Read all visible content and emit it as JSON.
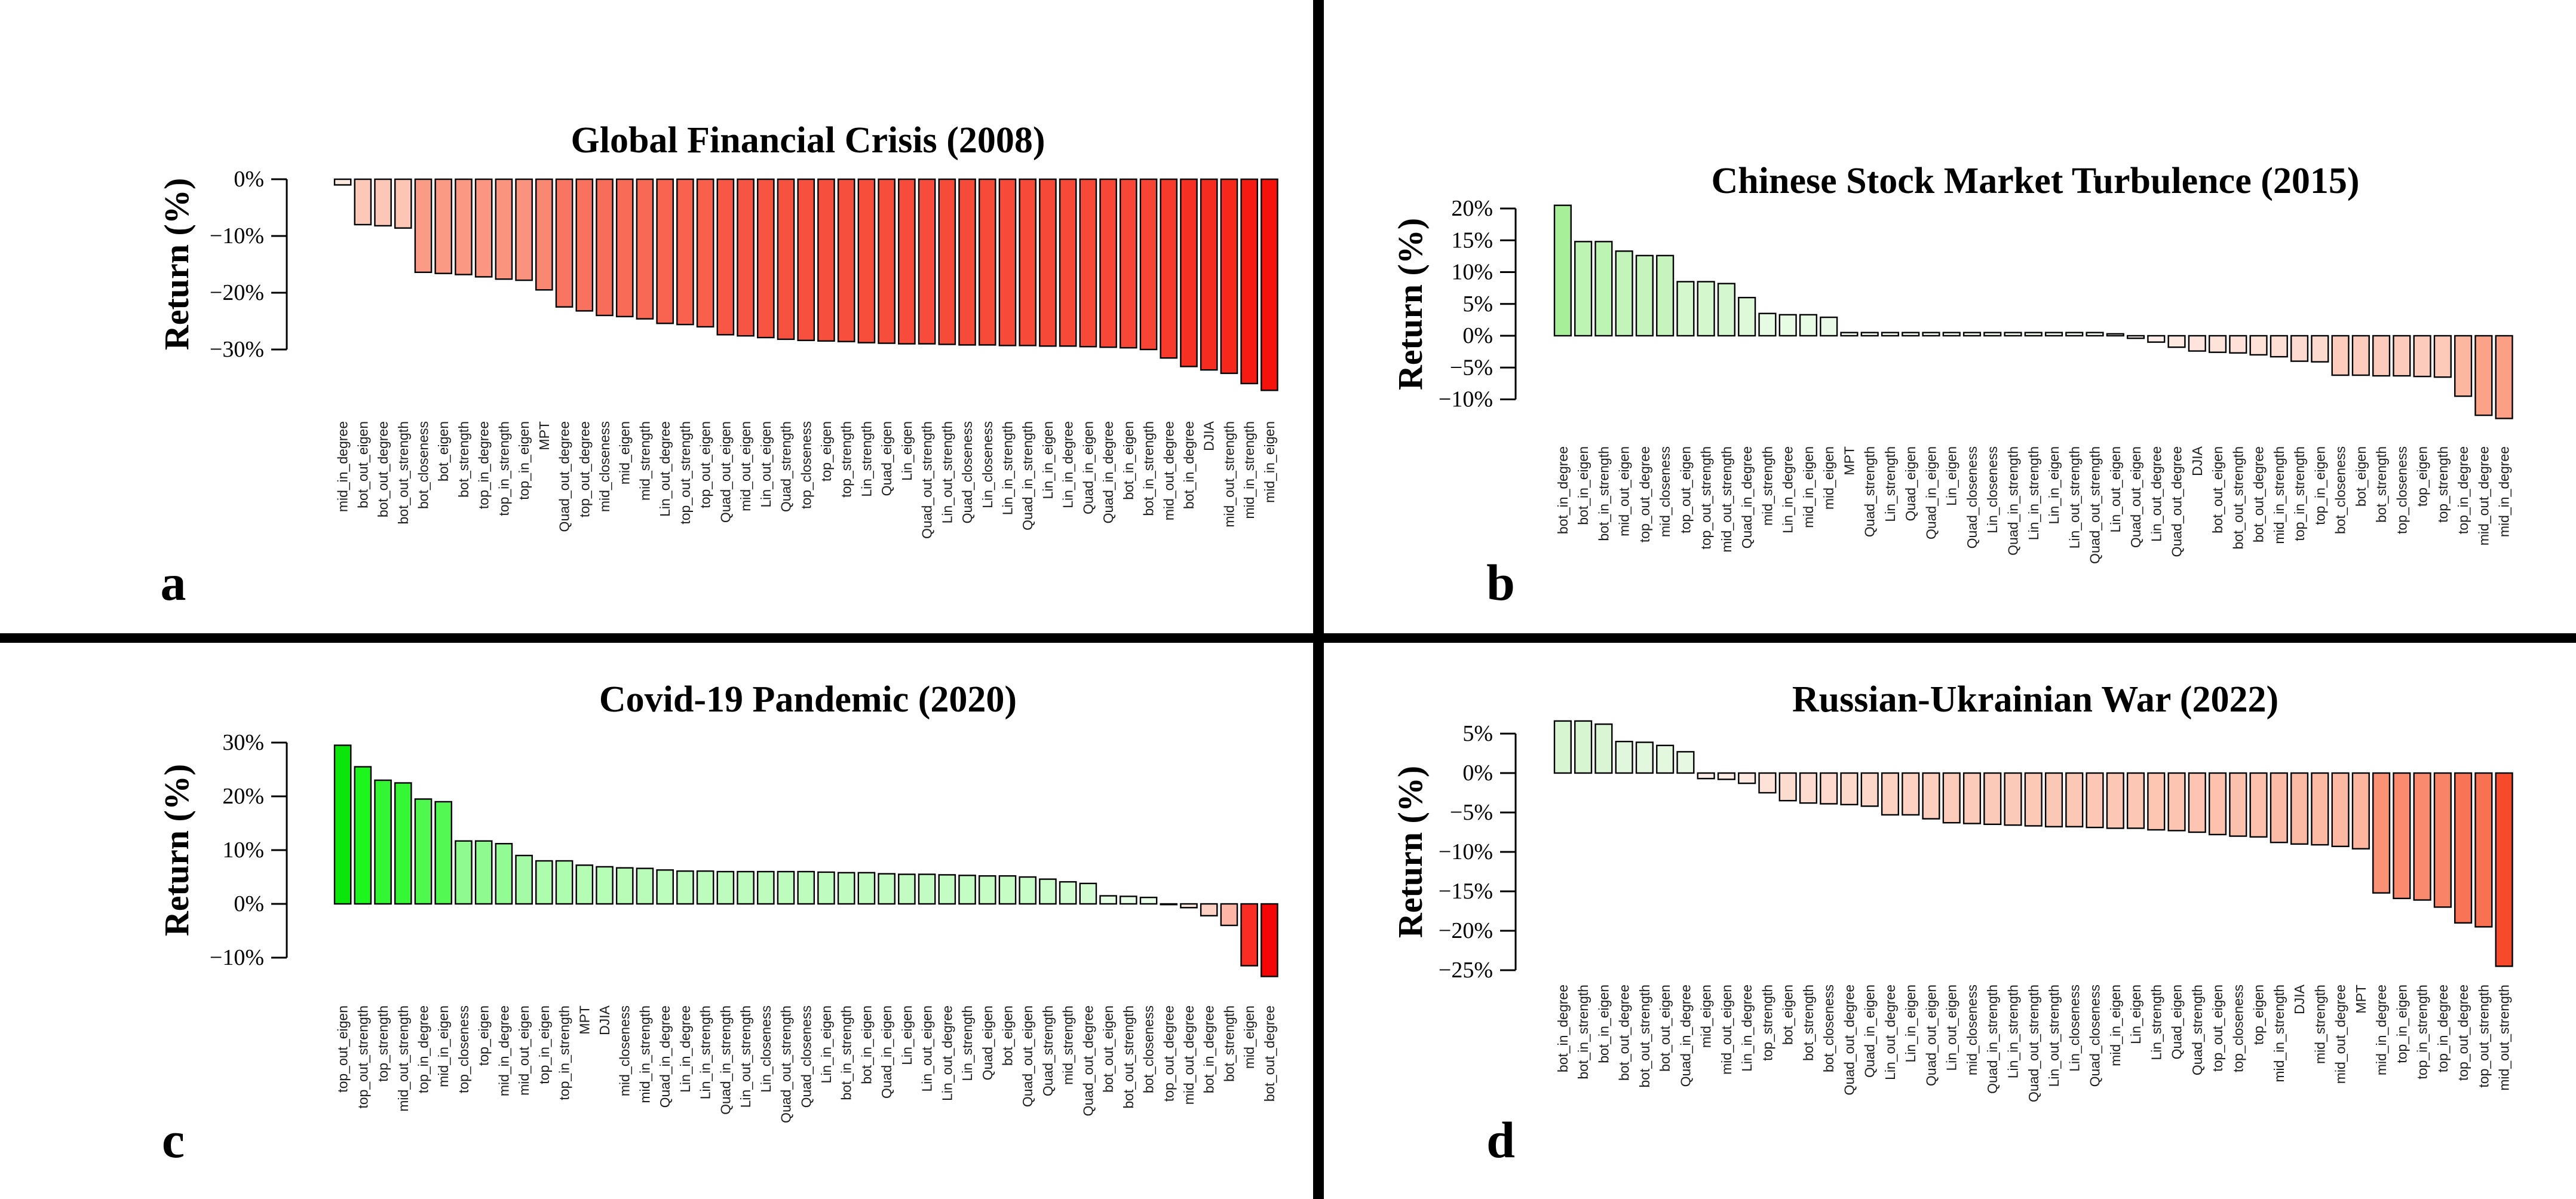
{
  "figure": {
    "ylabel": "Return (%)"
  },
  "chart_data": [
    {
      "id": "a",
      "corner_label": "a",
      "type": "bar",
      "title": "Global Financial Crisis (2008)",
      "ylabel": "Return (%)",
      "ytick_labels": [
        "0%",
        "−10%",
        "−20%",
        "−30%"
      ],
      "ytick_values": [
        0,
        -10,
        -20,
        -30
      ],
      "ylim": [
        2,
        -38
      ],
      "grid": false,
      "legend": null,
      "categories": [
        "mid_in_degree",
        "bot_out_eigen",
        "bot_out_degree",
        "bot_out_strength",
        "bot_closeness",
        "bot_eigen",
        "bot_strength",
        "top_in_degree",
        "top_in_strength",
        "top_in_eigen",
        "MPT",
        "Quad_out_degree",
        "top_out_degree",
        "mid_closeness",
        "mid_eigen",
        "mid_strength",
        "Lin_out_degree",
        "top_out_strength",
        "top_out_eigen",
        "Quad_out_eigen",
        "mid_out_eigen",
        "Lin_out_eigen",
        "Quad_strength",
        "top_closeness",
        "top_eigen",
        "top_strength",
        "Lin_strength",
        "Quad_eigen",
        "Lin_eigen",
        "Quad_out_strength",
        "Lin_out_strength",
        "Quad_closeness",
        "Lin_closeness",
        "Lin_in_strength",
        "Quad_in_strength",
        "Lin_in_eigen",
        "Lin_in_degree",
        "Quad_in_eigen",
        "Quad_in_degree",
        "bot_in_eigen",
        "bot_in_strength",
        "mid_out_degree",
        "bot_in_degree",
        "DJIA",
        "mid_out_strength",
        "mid_in_strength",
        "mid_in_eigen"
      ],
      "values": [
        -1,
        -8,
        -8.2,
        -8.6,
        -16.4,
        -16.6,
        -16.8,
        -17.2,
        -17.6,
        -17.8,
        -19.5,
        -22.5,
        -23.2,
        -24,
        -24.2,
        -24.6,
        -25.4,
        -25.6,
        -26,
        -27.4,
        -27.6,
        -27.9,
        -28.2,
        -28.4,
        -28.5,
        -28.6,
        -28.8,
        -28.9,
        -29,
        -29,
        -29.1,
        -29.2,
        -29.2,
        -29.3,
        -29.3,
        -29.4,
        -29.4,
        -29.5,
        -29.6,
        -29.7,
        -30,
        -31.5,
        -33,
        -33.6,
        -34.2,
        -36,
        -37.2
      ],
      "bar_edge_color": "#000000",
      "color_scale": {
        "pos": {
          "h0": 120,
          "h1": 120,
          "s": 90,
          "l0": 97,
          "l1": 60,
          "ref": 10
        },
        "neg": {
          "h0": 18,
          "h1": 2,
          "s": 92,
          "l0": 95,
          "l1": 50,
          "ref": 37.2
        }
      }
    },
    {
      "id": "b",
      "corner_label": "b",
      "type": "bar",
      "title": "Chinese Stock Market Turbulence (2015)",
      "ylabel": "Return (%)",
      "ytick_labels": [
        "20%",
        "15%",
        "10%",
        "5%",
        "0%",
        "−5%",
        "−10%"
      ],
      "ytick_values": [
        20,
        15,
        10,
        5,
        0,
        -5,
        -10
      ],
      "ylim": [
        22,
        -14
      ],
      "grid": false,
      "legend": null,
      "categories": [
        "bot_in_degree",
        "bot_in_eigen",
        "bot_in_strength",
        "mid_out_eigen",
        "top_out_degree",
        "mid_closeness",
        "top_out_eigen",
        "top_out_strength",
        "mid_out_strength",
        "Quad_in_degree",
        "mid_strength",
        "Lin_in_degree",
        "mid_in_eigen",
        "mid_eigen",
        "MPT",
        "Quad_strength",
        "Lin_strength",
        "Quad_eigen",
        "Quad_in_eigen",
        "Lin_eigen",
        "Quad_closeness",
        "Lin_closeness",
        "Quad_in_strength",
        "Lin_in_strength",
        "Lin_in_eigen",
        "Lin_out_strength",
        "Quad_out_strength",
        "Lin_out_eigen",
        "Quad_out_eigen",
        "Lin_out_degree",
        "Quad_out_degree",
        "DJIA",
        "bot_out_eigen",
        "bot_out_strength",
        "bot_out_degree",
        "mid_in_strength",
        "top_in_strength",
        "top_in_eigen",
        "bot_closeness",
        "bot_eigen",
        "bot_strength",
        "top_closeness",
        "top_eigen",
        "top_strength",
        "top_in_degree",
        "mid_out_degree",
        "mid_in_degree"
      ],
      "values": [
        20.5,
        14.8,
        14.8,
        13.3,
        12.6,
        12.6,
        8.5,
        8.5,
        8.2,
        6,
        3.5,
        3.3,
        3.3,
        2.9,
        0.5,
        0.5,
        0.5,
        0.5,
        0.5,
        0.5,
        0.5,
        0.5,
        0.5,
        0.5,
        0.5,
        0.5,
        0.5,
        0.3,
        -0.4,
        -1,
        -1.8,
        -2.4,
        -2.6,
        -2.7,
        -3,
        -3.3,
        -4,
        -4.1,
        -6.2,
        -6.2,
        -6.3,
        -6.3,
        -6.4,
        -6.5,
        -9.5,
        -12.5,
        -13
      ],
      "bar_edge_color": "#000000",
      "color_scale": {
        "pos": {
          "h0": 110,
          "h1": 110,
          "s": 72,
          "l0": 97,
          "l1": 77,
          "ref": 20.5
        },
        "neg": {
          "h0": 15,
          "h1": 14,
          "s": 93,
          "l0": 97,
          "l1": 75,
          "ref": 13
        }
      }
    },
    {
      "id": "c",
      "corner_label": "c",
      "type": "bar",
      "title": "Covid-19 Pandemic (2020)",
      "ylabel": "Return (%)",
      "ytick_labels": [
        "30%",
        "20%",
        "10%",
        "0%",
        "−10%"
      ],
      "ytick_values": [
        30,
        20,
        10,
        0,
        -10
      ],
      "ylim": [
        31,
        -15
      ],
      "grid": false,
      "legend": null,
      "categories": [
        "top_out_eigen",
        "top_out_strength",
        "top_strength",
        "mid_out_strength",
        "top_in_degree",
        "mid_in_eigen",
        "top_closeness",
        "top_eigen",
        "mid_in_degree",
        "mid_out_eigen",
        "top_in_eigen",
        "top_in_strength",
        "MPT",
        "DJIA",
        "mid_closeness",
        "mid_in_strength",
        "Quad_in_degree",
        "Lin_in_degree",
        "Lin_in_strength",
        "Quad_in_strength",
        "Lin_out_strength",
        "Lin_closeness",
        "Quad_out_strength",
        "Quad_closeness",
        "Lin_in_eigen",
        "bot_in_strength",
        "bot_in_eigen",
        "Quad_in_eigen",
        "Lin_eigen",
        "Lin_out_eigen",
        "Lin_out_degree",
        "Lin_strength",
        "Quad_eigen",
        "bot_eigen",
        "Quad_out_eigen",
        "Quad_strength",
        "mid_strength",
        "Quad_out_degree",
        "bot_out_eigen",
        "bot_out_strength",
        "bot_closeness",
        "top_out_degree",
        "mid_out_degree",
        "bot_in_degree",
        "bot_strength",
        "mid_eigen",
        "bot_out_degree"
      ],
      "values": [
        29.5,
        25.5,
        23,
        22.5,
        19.5,
        19,
        11.7,
        11.7,
        11.2,
        9,
        8,
        8,
        7.2,
        6.9,
        6.7,
        6.6,
        6.3,
        6.1,
        6.1,
        6,
        6,
        6,
        6,
        6,
        5.9,
        5.8,
        5.8,
        5.6,
        5.5,
        5.5,
        5.4,
        5.3,
        5.2,
        5.2,
        5,
        4.6,
        4.1,
        3.8,
        1.5,
        1.4,
        1.2,
        -0.1,
        -0.7,
        -2.2,
        -4,
        -11.5,
        -13.5
      ],
      "bar_edge_color": "#000000",
      "color_scale": {
        "pos": {
          "h0": 120,
          "h1": 120,
          "s": 92,
          "l0": 97,
          "l1": 47,
          "ref": 29.5
        },
        "neg": {
          "h0": 16,
          "h1": 0,
          "s": 95,
          "l0": 96,
          "l1": 49,
          "ref": 13.5
        }
      }
    },
    {
      "id": "d",
      "corner_label": "d",
      "type": "bar",
      "title": "Russian-Ukrainian War (2022)",
      "ylabel": "Return (%)",
      "ytick_labels": [
        "5%",
        "0%",
        "−5%",
        "−10%",
        "−15%",
        "−20%",
        "−25%"
      ],
      "ytick_values": [
        5,
        0,
        -5,
        -10,
        -15,
        -20,
        -25
      ],
      "ylim": [
        7,
        -26
      ],
      "grid": false,
      "legend": null,
      "categories": [
        "bot_in_degree",
        "bot_in_strength",
        "bot_in_eigen",
        "bot_out_degree",
        "bot_out_strength",
        "bot_out_eigen",
        "Quad_in_degree",
        "mid_eigen",
        "mid_out_eigen",
        "Lin_in_degree",
        "top_strength",
        "bot_eigen",
        "bot_strength",
        "bot_closeness",
        "Quad_out_degree",
        "Quad_in_eigen",
        "Lin_out_degree",
        "Lin_in_eigen",
        "Quad_out_eigen",
        "Lin_out_eigen",
        "mid_closeness",
        "Quad_in_strength",
        "Lin_in_strength",
        "Quad_out_strength",
        "Lin_out_strength",
        "Lin_closeness",
        "Quad_closeness",
        "mid_in_eigen",
        "Lin_eigen",
        "Lin_strength",
        "Quad_eigen",
        "Quad_strength",
        "top_out_eigen",
        "top_closeness",
        "top_eigen",
        "mid_in_strength",
        "DJIA",
        "mid_strength",
        "mid_out_degree",
        "MPT",
        "mid_in_degree",
        "top_in_eigen",
        "top_in_strength",
        "top_in_degree",
        "top_out_degree",
        "top_out_strength",
        "mid_out_strength"
      ],
      "values": [
        6.6,
        6.6,
        6.2,
        4,
        3.9,
        3.5,
        2.7,
        -0.7,
        -0.8,
        -1.3,
        -2.5,
        -3.5,
        -3.8,
        -3.9,
        -4,
        -4.2,
        -5.3,
        -5.3,
        -5.8,
        -6.3,
        -6.4,
        -6.5,
        -6.6,
        -6.7,
        -6.8,
        -6.8,
        -6.9,
        -7,
        -7,
        -7.2,
        -7.3,
        -7.5,
        -7.8,
        -8,
        -8.1,
        -8.8,
        -9,
        -9.1,
        -9.3,
        -9.6,
        -15.2,
        -15.9,
        -16.1,
        -17,
        -19,
        -19.5,
        -24.5
      ],
      "bar_edge_color": "#000000",
      "color_scale": {
        "pos": {
          "h0": 110,
          "h1": 110,
          "s": 63,
          "l0": 96,
          "l1": 89,
          "ref": 6.6
        },
        "neg": {
          "h0": 18,
          "h1": 9,
          "s": 93,
          "l0": 96,
          "l1": 57,
          "ref": 24.5
        }
      }
    }
  ]
}
